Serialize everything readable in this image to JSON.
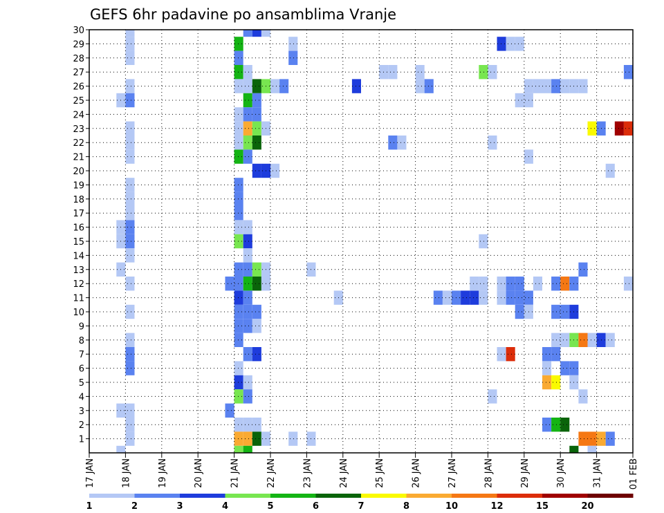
{
  "chart_data": {
    "type": "heatmap",
    "title": "GEFS 6hr padavine po ansamblima Vranje",
    "xlabel": "",
    "ylabel": "",
    "x_ticks": [
      "17 JAN",
      "18 JAN",
      "19 JAN",
      "20 JAN",
      "21 JAN",
      "22 JAN",
      "23 JAN",
      "24 JAN",
      "25 JAN",
      "26 JAN",
      "27 JAN",
      "28 JAN",
      "29 JAN",
      "30 JAN",
      "31 JAN",
      "01 FEB"
    ],
    "y_ticks": [
      1,
      2,
      3,
      4,
      5,
      6,
      7,
      8,
      9,
      10,
      11,
      12,
      13,
      14,
      15,
      16,
      17,
      18,
      19,
      20,
      21,
      22,
      23,
      24,
      25,
      26,
      27,
      28,
      29,
      30
    ],
    "x_range_days": [
      0,
      15
    ],
    "y_range": [
      0,
      30
    ],
    "grid": true,
    "legend": {
      "placement": "bottom",
      "labels": [
        "1",
        "2",
        "3",
        "4",
        "5",
        "6",
        "7",
        "8",
        "10",
        "12",
        "15",
        "20"
      ],
      "colors": [
        "#b4c8f5",
        "#5a82f0",
        "#1e3cdc",
        "#78e650",
        "#14b414",
        "#0a640a",
        "#fafa00",
        "#faaa32",
        "#f57814",
        "#dc2d0a",
        "#a00000",
        "#6e0000"
      ]
    },
    "cells_note": "each cell: [day offset from 17 JAN (6h steps), member, color class 0-11]",
    "cells": [
      [
        1.0,
        30,
        0
      ],
      [
        1.0,
        29,
        0
      ],
      [
        1.0,
        28,
        0
      ],
      [
        1.0,
        26,
        0
      ],
      [
        0.75,
        25,
        0
      ],
      [
        1.0,
        25,
        1
      ],
      [
        1.0,
        23,
        0
      ],
      [
        1.0,
        22,
        0
      ],
      [
        1.0,
        21,
        0
      ],
      [
        1.0,
        19,
        0
      ],
      [
        1.0,
        18,
        0
      ],
      [
        1.0,
        17,
        0
      ],
      [
        0.75,
        16,
        0
      ],
      [
        1.0,
        16,
        1
      ],
      [
        0.75,
        15,
        0
      ],
      [
        1.0,
        15,
        1
      ],
      [
        1.0,
        14,
        0
      ],
      [
        0.75,
        13,
        0
      ],
      [
        1.0,
        12,
        0
      ],
      [
        1.0,
        10,
        0
      ],
      [
        1.0,
        8,
        0
      ],
      [
        1.0,
        7,
        1
      ],
      [
        1.0,
        6,
        1
      ],
      [
        0.75,
        3,
        0
      ],
      [
        1.0,
        3,
        0
      ],
      [
        1.0,
        2,
        0
      ],
      [
        1.0,
        1,
        0
      ],
      [
        0.75,
        0,
        0
      ],
      [
        4.0,
        29,
        4
      ],
      [
        4.0,
        28,
        1
      ],
      [
        4.0,
        27,
        4
      ],
      [
        4.25,
        27,
        0
      ],
      [
        4.0,
        26,
        0
      ],
      [
        4.25,
        26,
        0
      ],
      [
        4.5,
        26,
        5
      ],
      [
        4.75,
        26,
        3
      ],
      [
        5.0,
        26,
        0
      ],
      [
        5.25,
        26,
        1
      ],
      [
        4.25,
        25,
        4
      ],
      [
        4.5,
        25,
        1
      ],
      [
        4.0,
        24,
        0
      ],
      [
        4.25,
        24,
        1
      ],
      [
        4.5,
        24,
        1
      ],
      [
        4.0,
        23,
        0
      ],
      [
        4.25,
        23,
        7
      ],
      [
        4.5,
        23,
        3
      ],
      [
        4.75,
        23,
        0
      ],
      [
        4.0,
        22,
        0
      ],
      [
        4.25,
        22,
        3
      ],
      [
        4.5,
        22,
        5
      ],
      [
        4.0,
        21,
        4
      ],
      [
        4.25,
        21,
        1
      ],
      [
        4.5,
        20,
        2
      ],
      [
        4.75,
        20,
        2
      ],
      [
        5.0,
        20,
        0
      ],
      [
        4.0,
        19,
        1
      ],
      [
        4.0,
        18,
        1
      ],
      [
        4.0,
        17,
        1
      ],
      [
        4.0,
        16,
        0
      ],
      [
        4.25,
        16,
        0
      ],
      [
        4.0,
        15,
        3
      ],
      [
        4.25,
        15,
        2
      ],
      [
        4.25,
        14,
        0
      ],
      [
        4.0,
        13,
        1
      ],
      [
        4.25,
        13,
        1
      ],
      [
        4.5,
        13,
        3
      ],
      [
        4.75,
        13,
        0
      ],
      [
        3.75,
        12,
        1
      ],
      [
        4.0,
        12,
        1
      ],
      [
        4.25,
        12,
        4
      ],
      [
        4.5,
        12,
        5
      ],
      [
        4.75,
        12,
        0
      ],
      [
        4.0,
        11,
        2
      ],
      [
        4.25,
        11,
        1
      ],
      [
        4.0,
        10,
        1
      ],
      [
        4.25,
        10,
        1
      ],
      [
        4.5,
        10,
        1
      ],
      [
        4.0,
        9,
        1
      ],
      [
        4.25,
        9,
        1
      ],
      [
        4.5,
        9,
        0
      ],
      [
        4.0,
        8,
        1
      ],
      [
        4.25,
        7,
        1
      ],
      [
        4.5,
        7,
        2
      ],
      [
        4.0,
        6,
        0
      ],
      [
        4.0,
        5,
        2
      ],
      [
        4.25,
        5,
        0
      ],
      [
        4.0,
        4,
        3
      ],
      [
        4.25,
        4,
        1
      ],
      [
        3.75,
        3,
        1
      ],
      [
        4.0,
        2,
        0
      ],
      [
        4.25,
        2,
        0
      ],
      [
        4.5,
        2,
        0
      ],
      [
        4.0,
        1,
        7
      ],
      [
        4.25,
        1,
        7
      ],
      [
        4.5,
        1,
        5
      ],
      [
        4.75,
        1,
        0
      ],
      [
        4.0,
        0,
        3
      ],
      [
        4.25,
        0,
        4
      ],
      [
        4.25,
        30,
        1
      ],
      [
        4.5,
        30,
        2
      ],
      [
        4.75,
        30,
        0
      ],
      [
        5.5,
        29,
        0
      ],
      [
        5.5,
        28,
        1
      ],
      [
        5.5,
        1,
        0
      ],
      [
        6.0,
        13,
        0
      ],
      [
        6.0,
        1,
        0
      ],
      [
        7.25,
        26,
        2
      ],
      [
        6.75,
        11,
        0
      ],
      [
        8.0,
        27,
        0
      ],
      [
        8.25,
        27,
        0
      ],
      [
        8.25,
        22,
        1
      ],
      [
        8.5,
        22,
        0
      ],
      [
        9.0,
        27,
        0
      ],
      [
        9.0,
        26,
        0
      ],
      [
        9.25,
        26,
        1
      ],
      [
        9.5,
        11,
        1
      ],
      [
        9.75,
        11,
        0
      ],
      [
        10.0,
        11,
        1
      ],
      [
        10.25,
        11,
        2
      ],
      [
        10.5,
        11,
        2
      ],
      [
        10.5,
        12,
        0
      ],
      [
        10.75,
        12,
        0
      ],
      [
        10.75,
        11,
        0
      ],
      [
        10.75,
        15,
        0
      ],
      [
        10.75,
        27,
        3
      ],
      [
        11.0,
        27,
        0
      ],
      [
        11.0,
        22,
        0
      ],
      [
        11.0,
        4,
        0
      ],
      [
        11.25,
        29,
        2
      ],
      [
        11.5,
        29,
        0
      ],
      [
        11.75,
        29,
        0
      ],
      [
        11.25,
        12,
        0
      ],
      [
        11.25,
        11,
        0
      ],
      [
        11.5,
        11,
        1
      ],
      [
        11.75,
        11,
        1
      ],
      [
        11.5,
        12,
        1
      ],
      [
        11.75,
        12,
        1
      ],
      [
        11.75,
        10,
        1
      ],
      [
        12.0,
        11,
        1
      ],
      [
        12.0,
        10,
        0
      ],
      [
        11.25,
        7,
        0
      ],
      [
        11.5,
        7,
        9
      ],
      [
        11.75,
        25,
        0
      ],
      [
        12.0,
        25,
        0
      ],
      [
        12.0,
        21,
        0
      ],
      [
        12.0,
        26,
        0
      ],
      [
        12.25,
        26,
        0
      ],
      [
        12.5,
        26,
        0
      ],
      [
        12.75,
        26,
        1
      ],
      [
        13.0,
        26,
        0
      ],
      [
        13.25,
        26,
        0
      ],
      [
        13.5,
        26,
        0
      ],
      [
        12.25,
        12,
        0
      ],
      [
        12.75,
        12,
        1
      ],
      [
        13.0,
        12,
        8
      ],
      [
        13.25,
        12,
        1
      ],
      [
        12.75,
        10,
        1
      ],
      [
        13.0,
        10,
        1
      ],
      [
        13.25,
        10,
        2
      ],
      [
        12.75,
        8,
        0
      ],
      [
        13.0,
        8,
        0
      ],
      [
        13.25,
        8,
        3
      ],
      [
        13.5,
        8,
        8
      ],
      [
        13.75,
        8,
        0
      ],
      [
        14.0,
        8,
        2
      ],
      [
        14.25,
        8,
        0
      ],
      [
        12.5,
        7,
        1
      ],
      [
        12.75,
        7,
        1
      ],
      [
        12.5,
        6,
        0
      ],
      [
        13.0,
        6,
        1
      ],
      [
        13.25,
        6,
        1
      ],
      [
        12.5,
        5,
        7
      ],
      [
        12.75,
        5,
        6
      ],
      [
        13.25,
        5,
        0
      ],
      [
        13.5,
        4,
        0
      ],
      [
        12.5,
        2,
        1
      ],
      [
        12.75,
        2,
        4
      ],
      [
        13.0,
        2,
        5
      ],
      [
        13.5,
        13,
        1
      ],
      [
        13.5,
        1,
        8
      ],
      [
        13.75,
        1,
        8
      ],
      [
        14.0,
        1,
        7
      ],
      [
        14.25,
        1,
        1
      ],
      [
        13.25,
        0,
        5
      ],
      [
        13.75,
        0,
        0
      ],
      [
        14.25,
        20,
        0
      ],
      [
        13.75,
        23,
        6
      ],
      [
        14.0,
        23,
        1
      ],
      [
        14.5,
        23,
        10
      ],
      [
        14.75,
        23,
        9
      ],
      [
        14.75,
        27,
        1
      ],
      [
        14.75,
        12,
        0
      ]
    ]
  }
}
